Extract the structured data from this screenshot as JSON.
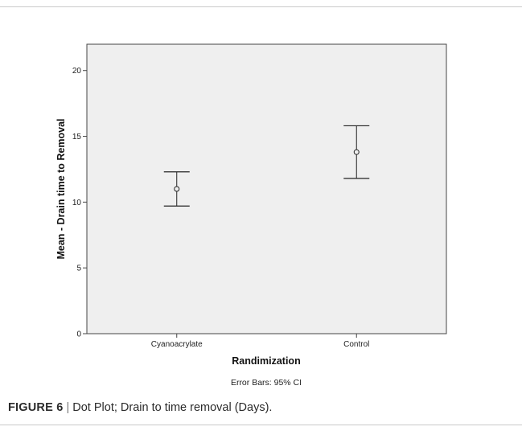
{
  "chart_data": {
    "type": "scatter",
    "subtype": "mean-with-95ci-error-bars",
    "categories": [
      "Cyanoacrylate",
      "Control"
    ],
    "mean": [
      11.0,
      13.8
    ],
    "ci_lower": [
      9.7,
      11.8
    ],
    "ci_upper": [
      12.3,
      15.8
    ],
    "xlabel": "Randimization",
    "ylabel": "Mean - Drain time to Removal",
    "ylim": [
      0,
      22
    ],
    "yticks": [
      0,
      5,
      10,
      15,
      20
    ],
    "footnote": "Error Bars: 95% CI",
    "grid": false,
    "plot_background": "#efefef",
    "mark_color": "#222222"
  },
  "caption": {
    "label": "FIGURE 6",
    "separator": "|",
    "text": "Dot Plot; Drain to time removal (Days)."
  }
}
